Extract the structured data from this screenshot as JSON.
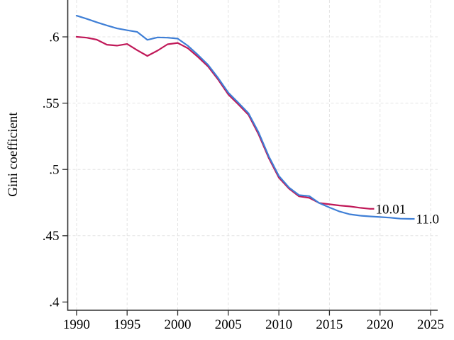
{
  "chart_data": {
    "type": "line",
    "title": "",
    "xlabel": "",
    "ylabel": "Gini coefficient",
    "grid": true,
    "legend_position": "line-end-labels",
    "xlim": [
      1989.13,
      2025.7
    ],
    "ylim": [
      0.3938,
      0.6278
    ],
    "x_ticks": [
      1990,
      1995,
      2000,
      2005,
      2010,
      2015,
      2020,
      2025
    ],
    "x_tick_labels": [
      "1990",
      "1995",
      "2000",
      "2005",
      "2010",
      "2015",
      "2020",
      "2025"
    ],
    "y_ticks": [
      0.4,
      0.45,
      0.5,
      0.55,
      0.6
    ],
    "y_tick_labels": [
      ".4",
      ".45",
      ".5",
      ".55",
      ".6"
    ],
    "y_grid_ticks": [
      0.45,
      0.5,
      0.55,
      0.6
    ],
    "series": [
      {
        "id": "pwt-10-01",
        "label": "10.01",
        "color": "#c01858",
        "x": [
          1990,
          1991,
          1992,
          1993,
          1994,
          1995,
          1996,
          1997,
          1998,
          1999,
          2000,
          2001,
          2002,
          2003,
          2004,
          2005,
          2006,
          2007,
          2008,
          2009,
          2010,
          2011,
          2012,
          2013,
          2014,
          2015,
          2016,
          2017,
          2018,
          2019
        ],
        "values": [
          0.6,
          0.5994,
          0.5979,
          0.5941,
          0.5934,
          0.5946,
          0.5899,
          0.5856,
          0.5896,
          0.5944,
          0.5954,
          0.5914,
          0.5849,
          0.5777,
          0.5677,
          0.5566,
          0.549,
          0.5412,
          0.5264,
          0.5086,
          0.4938,
          0.4856,
          0.4797,
          0.4786,
          0.4747,
          0.4737,
          0.4728,
          0.4721,
          0.4711,
          0.4703
        ]
      },
      {
        "id": "pwt-11-0",
        "label": "11.0",
        "color": "#3f7fd6",
        "x": [
          1990,
          1991,
          1992,
          1993,
          1994,
          1995,
          1996,
          1997,
          1998,
          1999,
          2000,
          2001,
          2002,
          2003,
          2004,
          2005,
          2006,
          2007,
          2008,
          2009,
          2010,
          2011,
          2012,
          2013,
          2014,
          2015,
          2016,
          2017,
          2018,
          2019,
          2020,
          2021,
          2022,
          2023
        ],
        "values": [
          0.616,
          0.6136,
          0.611,
          0.6086,
          0.6064,
          0.605,
          0.6037,
          0.5977,
          0.5996,
          0.5994,
          0.5987,
          0.5933,
          0.5864,
          0.5789,
          0.5689,
          0.5579,
          0.5503,
          0.5424,
          0.5279,
          0.5099,
          0.4951,
          0.4864,
          0.4806,
          0.4799,
          0.4746,
          0.4713,
          0.4683,
          0.4662,
          0.4652,
          0.4646,
          0.4641,
          0.4636,
          0.4629,
          0.4627
        ]
      }
    ]
  }
}
